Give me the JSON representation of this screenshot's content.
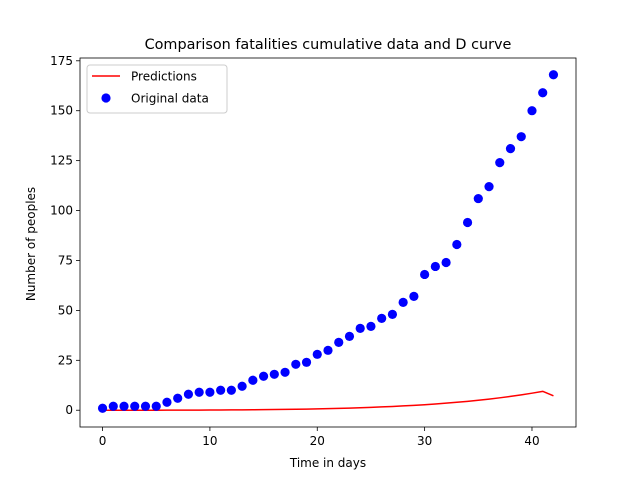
{
  "chart_data": {
    "type": "line+scatter",
    "title": "Comparison fatalities cumulative data and D curve",
    "xlabel": "Time in days",
    "ylabel": "Number of peoples",
    "xlim": [
      -2.1,
      44.1
    ],
    "ylim": [
      -8.4,
      176.4
    ],
    "xticks": [
      0,
      10,
      20,
      30,
      40
    ],
    "yticks": [
      0,
      25,
      50,
      75,
      100,
      125,
      150,
      175
    ],
    "grid": false,
    "legend_position": "top-left",
    "series": [
      {
        "name": "Predictions",
        "kind": "line",
        "color": "#ff0000",
        "x": [
          0,
          1,
          2,
          3,
          4,
          5,
          6,
          7,
          8,
          9,
          10,
          11,
          12,
          13,
          14,
          15,
          16,
          17,
          18,
          19,
          20,
          21,
          22,
          23,
          24,
          25,
          26,
          27,
          28,
          29,
          30,
          31,
          32,
          33,
          34,
          35,
          36,
          37,
          38,
          39,
          40,
          41,
          42
        ],
        "y": [
          0.0,
          0.0,
          0.0,
          0.0,
          0.01,
          0.02,
          0.03,
          0.04,
          0.05,
          0.07,
          0.09,
          0.12,
          0.15,
          0.19,
          0.23,
          0.28,
          0.34,
          0.41,
          0.49,
          0.58,
          0.68,
          0.8,
          0.93,
          1.08,
          1.25,
          1.44,
          1.65,
          1.89,
          2.15,
          2.44,
          2.77,
          3.13,
          3.53,
          3.97,
          4.46,
          4.99,
          5.58,
          6.22,
          6.93,
          7.7,
          8.53,
          9.45,
          7.2
        ]
      },
      {
        "name": "Original data",
        "kind": "scatter",
        "color": "#0000ff",
        "x": [
          0,
          1,
          2,
          3,
          4,
          5,
          6,
          7,
          8,
          9,
          10,
          11,
          12,
          13,
          14,
          15,
          16,
          17,
          18,
          19,
          20,
          21,
          22,
          23,
          24,
          25,
          26,
          27,
          28,
          29,
          30,
          31,
          32,
          33,
          34,
          35,
          36,
          37,
          38,
          39,
          40,
          41,
          42
        ],
        "y": [
          1,
          2,
          2,
          2,
          2,
          2,
          4,
          6,
          8,
          9,
          9,
          10,
          10,
          12,
          15,
          17,
          18,
          19,
          23,
          24,
          28,
          30,
          34,
          37,
          41,
          42,
          46,
          48,
          54,
          57,
          68,
          72,
          74,
          83,
          94,
          106,
          112,
          124,
          131,
          137,
          150,
          159,
          168
        ]
      }
    ]
  }
}
